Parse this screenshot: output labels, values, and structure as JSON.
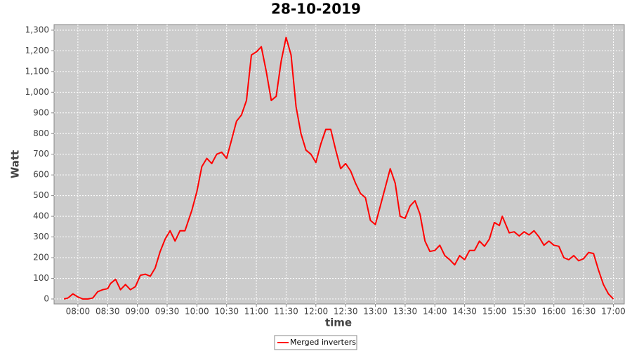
{
  "chart_data": {
    "type": "line",
    "title": "28-10-2019",
    "x_label": "time",
    "y_label": "Watt",
    "x": [
      "07:46",
      "07:50",
      "07:55",
      "08:00",
      "08:05",
      "08:10",
      "08:15",
      "08:20",
      "08:25",
      "08:30",
      "08:33",
      "08:38",
      "08:43",
      "08:48",
      "08:53",
      "08:58",
      "09:03",
      "09:08",
      "09:13",
      "09:18",
      "09:23",
      "09:28",
      "09:33",
      "09:38",
      "09:43",
      "09:48",
      "09:55",
      "10:00",
      "10:05",
      "10:10",
      "10:15",
      "10:20",
      "10:25",
      "10:30",
      "10:35",
      "10:40",
      "10:45",
      "10:50",
      "10:55",
      "11:00",
      "11:05",
      "11:10",
      "11:15",
      "11:20",
      "11:25",
      "11:30",
      "11:35",
      "11:40",
      "11:45",
      "11:50",
      "11:55",
      "12:00",
      "12:05",
      "12:10",
      "12:15",
      "12:20",
      "12:25",
      "12:30",
      "12:35",
      "12:40",
      "12:45",
      "12:50",
      "12:55",
      "13:00",
      "13:05",
      "13:10",
      "13:15",
      "13:20",
      "13:25",
      "13:30",
      "13:35",
      "13:40",
      "13:45",
      "13:50",
      "13:55",
      "14:00",
      "14:05",
      "14:10",
      "14:15",
      "14:20",
      "14:25",
      "14:30",
      "14:35",
      "14:40",
      "14:45",
      "14:50",
      "14:55",
      "15:00",
      "15:05",
      "15:08",
      "15:15",
      "15:20",
      "15:25",
      "15:30",
      "15:35",
      "15:40",
      "15:45",
      "15:50",
      "15:55",
      "16:00",
      "16:05",
      "16:10",
      "16:15",
      "16:20",
      "16:25",
      "16:30",
      "16:35",
      "16:40",
      "16:45",
      "16:50",
      "16:55",
      "17:00"
    ],
    "series": [
      {
        "name": "Merged inverters",
        "color": "#ff0000",
        "values": [
          0,
          5,
          25,
          10,
          0,
          0,
          5,
          35,
          45,
          50,
          75,
          95,
          45,
          70,
          45,
          60,
          115,
          120,
          110,
          150,
          230,
          290,
          330,
          280,
          330,
          330,
          430,
          520,
          640,
          680,
          655,
          700,
          710,
          680,
          770,
          860,
          890,
          960,
          1180,
          1195,
          1220,
          1100,
          960,
          980,
          1150,
          1265,
          1180,
          930,
          800,
          720,
          700,
          660,
          750,
          820,
          820,
          720,
          630,
          655,
          620,
          560,
          510,
          490,
          380,
          360,
          450,
          540,
          630,
          560,
          400,
          390,
          450,
          475,
          410,
          280,
          230,
          235,
          260,
          210,
          190,
          165,
          210,
          190,
          235,
          235,
          280,
          255,
          290,
          370,
          355,
          400,
          320,
          325,
          305,
          325,
          310,
          330,
          300,
          260,
          280,
          260,
          255,
          200,
          190,
          210,
          185,
          195,
          225,
          220,
          140,
          70,
          25,
          0
        ]
      }
    ],
    "xlim": [
      "07:36",
      "17:11"
    ],
    "xticks": [
      "08:00",
      "08:30",
      "09:00",
      "09:30",
      "10:00",
      "10:30",
      "11:00",
      "11:30",
      "12:00",
      "12:30",
      "13:00",
      "13:30",
      "14:00",
      "14:30",
      "15:00",
      "15:30",
      "16:00",
      "16:30",
      "17:00"
    ],
    "ylim": [
      -24,
      1327
    ],
    "yticks": [
      0,
      100,
      200,
      300,
      400,
      500,
      600,
      700,
      800,
      900,
      {
        "value": 1000,
        "label": "1,000"
      },
      {
        "value": 1100,
        "label": "1,100"
      },
      {
        "value": 1200,
        "label": "1,200"
      },
      {
        "value": 1300,
        "label": "1,300"
      }
    ],
    "grid": true,
    "legend": "bottom"
  }
}
